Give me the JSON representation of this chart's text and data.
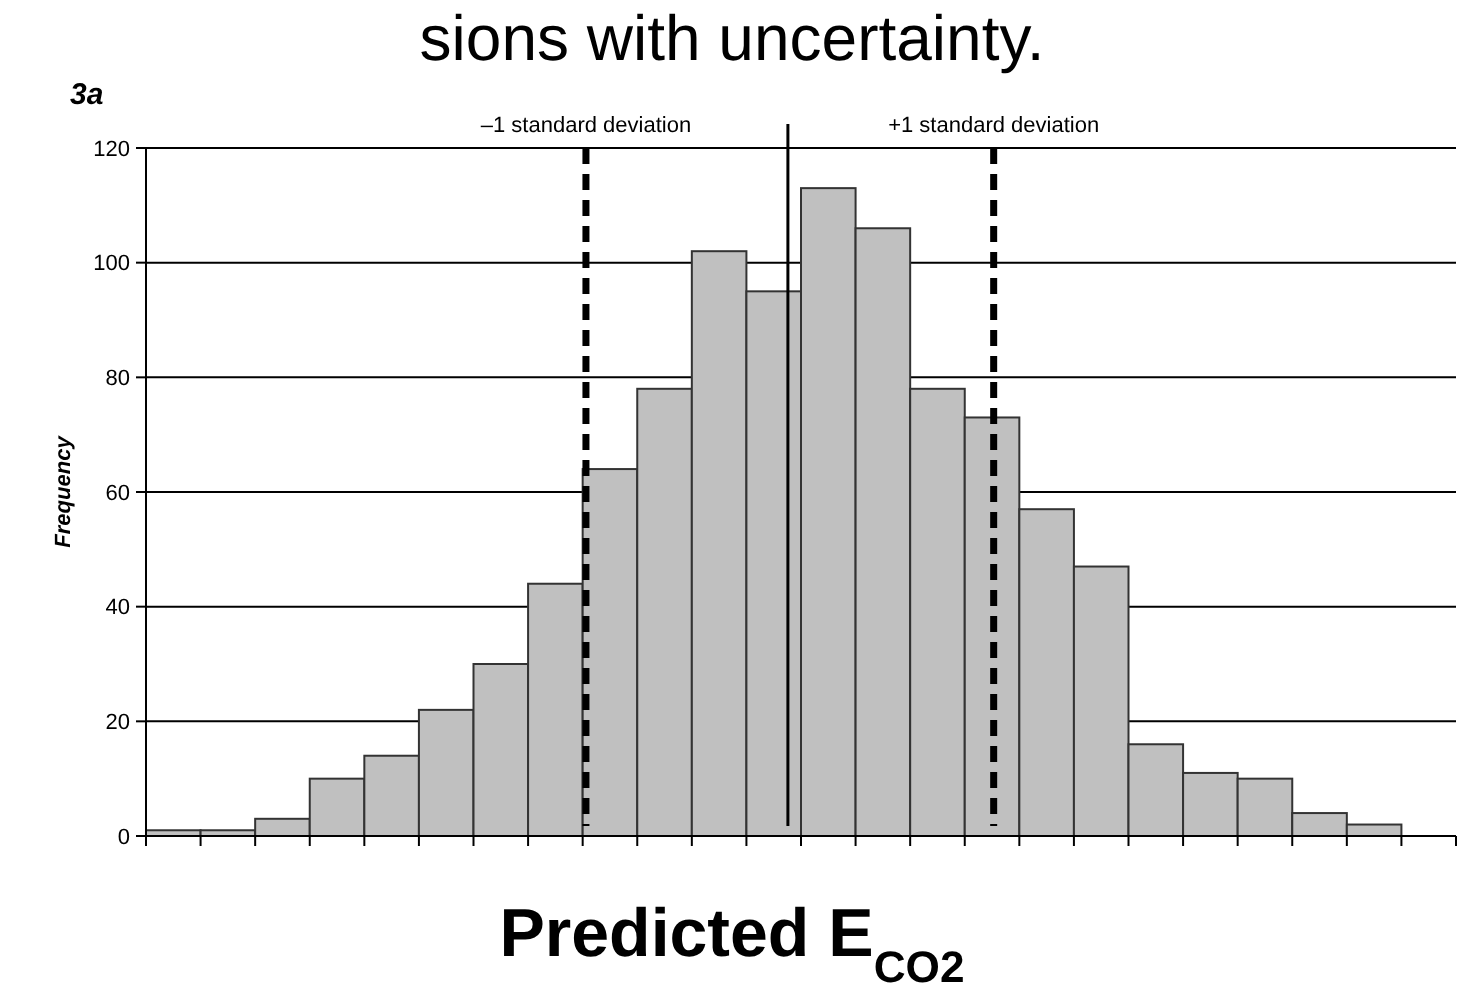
{
  "chart_data": {
    "type": "bar",
    "title": "sions with uncertainty.",
    "xlabel": "Predicted E$_{CO2}$",
    "ylabel": "Frequency",
    "annotations": [
      "3a"
    ],
    "categories": [
      null,
      null,
      null,
      null,
      null,
      null,
      null,
      null,
      null,
      null,
      null,
      null,
      null,
      null,
      null,
      null,
      null,
      null,
      null,
      null,
      null,
      null,
      null,
      null
    ],
    "values": [
      1,
      1,
      3,
      10,
      14,
      22,
      30,
      44,
      64,
      78,
      102,
      95,
      113,
      106,
      78,
      73,
      57,
      47,
      16,
      11,
      10,
      4,
      2,
      null
    ],
    "color": "#c0c0c0",
    "ylim": [
      0,
      120
    ],
    "yticks": [
      0,
      20,
      40,
      60,
      80,
      100,
      120
    ],
    "grid": "y",
    "ref_lines": [
      {
        "axis": "x",
        "label": "–1 standard deviation",
        "line_style": "dashed",
        "color": "#000000"
      },
      {
        "axis": "x",
        "label": null,
        "line_style": "solid",
        "color": "#000000"
      },
      {
        "axis": "x",
        "label": "+1 standard deviation",
        "line_style": "dashed",
        "color": "#000000"
      }
    ]
  }
}
